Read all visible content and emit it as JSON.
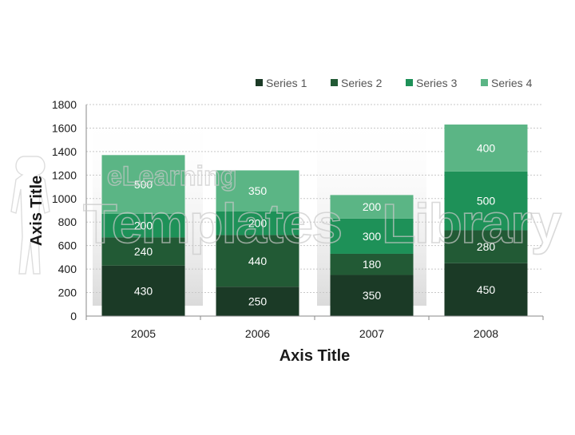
{
  "chart_data": {
    "type": "bar",
    "stacked": true,
    "categories": [
      "2005",
      "2006",
      "2007",
      "2008"
    ],
    "series": [
      {
        "name": "Series 1",
        "color": "#1b3a26",
        "values": [
          430,
          250,
          350,
          450
        ]
      },
      {
        "name": "Series 2",
        "color": "#225a35",
        "values": [
          240,
          440,
          180,
          280
        ]
      },
      {
        "name": "Series 3",
        "color": "#1e9158",
        "values": [
          200,
          200,
          300,
          500
        ]
      },
      {
        "name": "Series 4",
        "color": "#5bb585",
        "values": [
          500,
          350,
          200,
          400
        ]
      }
    ],
    "xlabel": "Axis Title",
    "ylabel": "Axis Title",
    "ylim": [
      0,
      1800
    ],
    "yticks": [
      "0",
      "200",
      "400",
      "600",
      "800",
      "1000",
      "1200",
      "1400",
      "1600",
      "1800"
    ],
    "grid": true,
    "legend_position": "top-right",
    "watermark": "eLearning Templates Library"
  }
}
